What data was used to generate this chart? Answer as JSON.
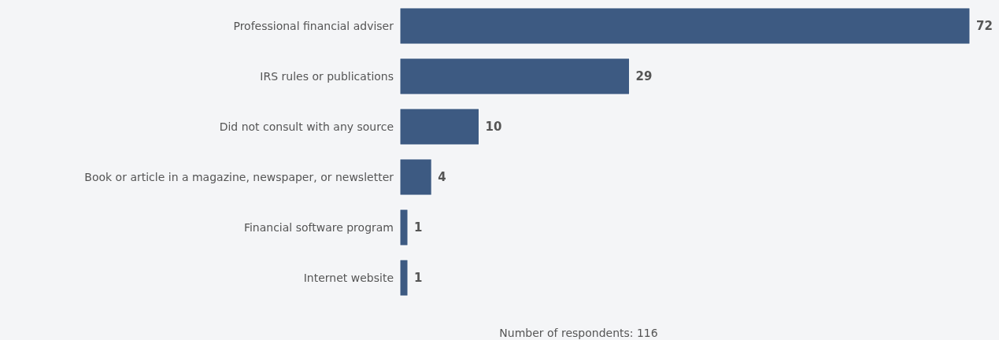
{
  "chart_data": {
    "type": "bar",
    "orientation": "horizontal",
    "categories": [
      "Professional financial adviser",
      "IRS rules or publications",
      "Did not consult with any source",
      "Book or article in a magazine, newspaper, or newsletter",
      "Financial software program",
      "Internet website"
    ],
    "values": [
      72,
      29,
      10,
      4,
      1,
      1
    ],
    "color": "#3d5a82",
    "data_labels": true,
    "xlabel": "Number of respondents: 116"
  }
}
